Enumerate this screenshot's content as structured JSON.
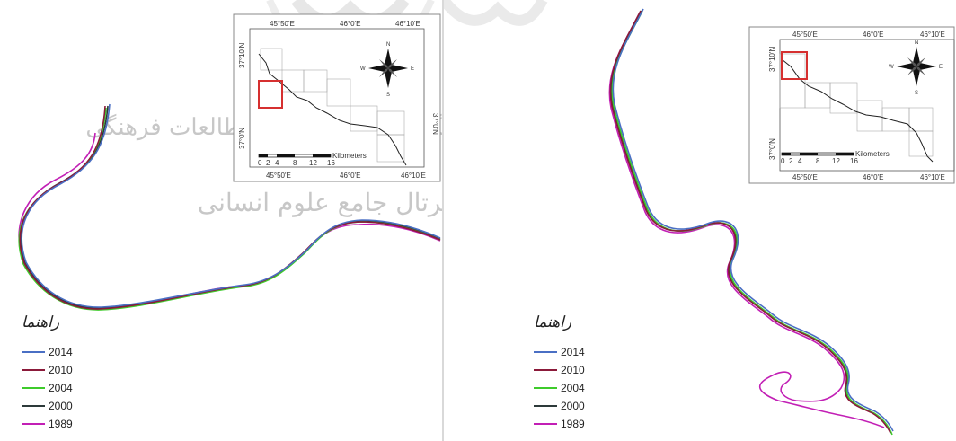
{
  "legend": {
    "title": "راهنما",
    "items": [
      {
        "label": "2014",
        "color": "#4a6fc4"
      },
      {
        "label": "2010",
        "color": "#8b1a3a"
      },
      {
        "label": "2004",
        "color": "#3ecb2b"
      },
      {
        "label": "2000",
        "color": "#2d3a3a"
      },
      {
        "label": "1989",
        "color": "#c21fb5"
      }
    ]
  },
  "inset_left": {
    "top_labels": [
      "45°50'E",
      "46°0'E",
      "46°10'E"
    ],
    "bottom_labels": [
      "45°50'E",
      "46°0'E",
      "46°10'E"
    ],
    "left_labels": [
      "37°10'N",
      "37°0'N"
    ],
    "right_labels": [
      "37°0'N"
    ],
    "scale_ticks": [
      "0",
      "2",
      "4",
      "8",
      "12",
      "16"
    ],
    "scale_unit": "Kilometers"
  },
  "inset_right": {
    "top_labels": [
      "45°50'E",
      "46°0'E",
      "46°10'E"
    ],
    "bottom_labels": [
      "45°50'E",
      "46°0'E",
      "46°10'E"
    ],
    "left_labels": [
      "37°10'N",
      "37°0'N"
    ],
    "scale_ticks": [
      "0",
      "2",
      "4",
      "8",
      "12",
      "16"
    ],
    "scale_unit": "Kilometers"
  },
  "compass": {
    "n": "N",
    "s": "S",
    "e": "E",
    "w": "W"
  },
  "watermark": {
    "line1": "پژوهشگاه علوم انسانی و مطالعات فرهنگی",
    "line2": "پرتال جامع علوم انسانی"
  }
}
